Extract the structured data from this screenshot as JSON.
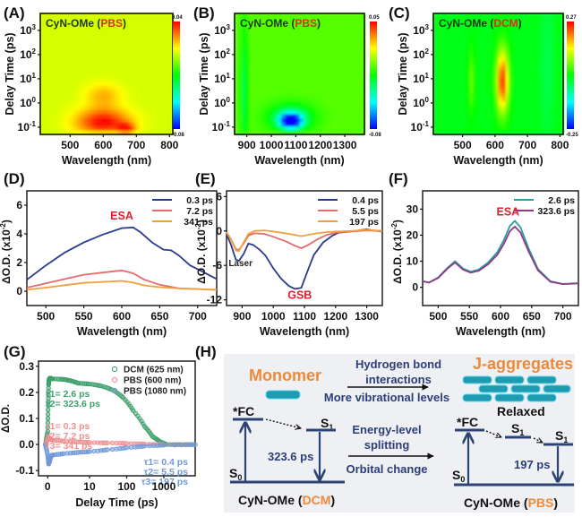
{
  "chart_data": [
    {
      "panel": "(A)",
      "type": "heatmap",
      "title_prefix": "CyN-OMe (",
      "title_solvent": "PBS",
      "title_suffix": ")",
      "xlabel": "Wavelength (nm)",
      "ylabel": "Delay Time (ps)",
      "xlim": [
        410,
        810
      ],
      "xticks": [
        "500",
        "600",
        "700",
        "800"
      ],
      "xtick_values": [
        500,
        600,
        700,
        800
      ],
      "ylim_log10": [
        -1.3,
        3.7
      ],
      "yticks": [
        "10-1",
        "100",
        "101",
        "102",
        "103"
      ],
      "ytick_exponents": [
        -1,
        0,
        1,
        2,
        3
      ],
      "colorbar": {
        "max": "0.04",
        "min": "-0.08",
        "vmin": -0.08,
        "vmax": 0.04
      },
      "background_value": 0.005,
      "features": [
        {
          "center_nm": 600,
          "center_log_t": -0.8,
          "width_nm": 80,
          "width_log_t": 0.55,
          "value": 0.035
        },
        {
          "center_nm": 670,
          "center_log_t": -1.1,
          "width_nm": 25,
          "width_log_t": 0.25,
          "value": 0.03
        },
        {
          "center_nm": 600,
          "center_log_t": 0.3,
          "width_nm": 55,
          "width_log_t": 0.5,
          "value": 0.014
        }
      ]
    },
    {
      "panel": "(B)",
      "type": "heatmap",
      "title_prefix": "CyN-OMe (",
      "title_solvent": "PBS",
      "title_suffix": ")",
      "xlabel": "Wavelength (nm)",
      "ylabel": "Delay Time (ps)",
      "xlim": [
        850,
        1380
      ],
      "xticks": [
        "900",
        "1000",
        "1100",
        "1200",
        "1300"
      ],
      "xtick_values": [
        900,
        1000,
        1100,
        1200,
        1300
      ],
      "ylim_log10": [
        -1.3,
        3.7
      ],
      "yticks": [
        "10-1",
        "100",
        "101",
        "102",
        "103"
      ],
      "ytick_exponents": [
        -1,
        0,
        1,
        2,
        3
      ],
      "colorbar": {
        "max": "0.05",
        "min": "-0.08",
        "vmin": -0.08,
        "vmax": 0.05
      },
      "background_value": -0.004,
      "features": [
        {
          "center_nm": 1080,
          "center_log_t": -0.75,
          "width_nm": 45,
          "width_log_t": 0.3,
          "value": -0.075
        },
        {
          "center_nm": 1080,
          "center_log_t": -0.6,
          "width_nm": 90,
          "width_log_t": 0.55,
          "value": -0.03
        },
        {
          "center_nm": 890,
          "center_log_t": 0.5,
          "width_nm": 15,
          "width_log_t": 3.0,
          "value": -0.02
        }
      ]
    },
    {
      "panel": "(C)",
      "type": "heatmap",
      "title_prefix": "CyN-OMe (",
      "title_solvent": "DCM",
      "title_suffix": ")",
      "xlabel": "Wavelength (nm)",
      "ylabel": "Delay Time (ps)",
      "xlim": [
        410,
        810
      ],
      "xticks": [
        "500",
        "600",
        "700",
        "800"
      ],
      "xtick_values": [
        500,
        600,
        700,
        800
      ],
      "ylim_log10": [
        -1.3,
        3.7
      ],
      "yticks": [
        "10-1",
        "100",
        "101",
        "102",
        "103"
      ],
      "ytick_exponents": [
        -1,
        0,
        1,
        2,
        3
      ],
      "colorbar": {
        "max": "0.27",
        "min": "-0.25",
        "vmin": -0.25,
        "vmax": 0.27
      },
      "background_value": 0.0,
      "features": [
        {
          "center_nm": 623,
          "center_log_t": 0.9,
          "width_nm": 18,
          "width_log_t": 1.3,
          "value": 0.25
        },
        {
          "center_nm": 528,
          "center_log_t": 0.9,
          "width_nm": 10,
          "width_log_t": 1.3,
          "value": 0.06
        },
        {
          "center_nm": 760,
          "center_log_t": 1.5,
          "width_nm": 20,
          "width_log_t": 3.0,
          "value": -0.03
        }
      ]
    },
    {
      "panel": "(D)",
      "type": "line",
      "xlabel": "Wavelength (nm)",
      "ylabel_main": "ΔO.D. (x10",
      "ylabel_sup": "-2",
      "ylabel_end": ")",
      "xlim": [
        475,
        725
      ],
      "ylim": [
        -1,
        7
      ],
      "xticks": [
        500,
        550,
        600,
        650,
        700
      ],
      "yticks": [
        0,
        2,
        4,
        6
      ],
      "annotations": [
        {
          "text": "ESA",
          "x": 600,
          "y": 5.0,
          "color": "#e0202e"
        }
      ],
      "series": [
        {
          "name": "0.3 ps",
          "color": "#2b3a8c",
          "x": [
            475,
            500,
            525,
            550,
            575,
            600,
            615,
            625,
            640,
            655,
            665,
            675,
            690,
            705,
            725
          ],
          "y": [
            0.8,
            1.8,
            2.7,
            3.4,
            3.95,
            4.4,
            4.45,
            4.1,
            3.4,
            2.9,
            2.85,
            2.5,
            1.8,
            1.4,
            0.85
          ]
        },
        {
          "name": "7.2 ps",
          "color": "#e36b6b",
          "x": [
            475,
            500,
            525,
            550,
            575,
            600,
            615,
            630,
            650,
            675,
            700,
            725
          ],
          "y": [
            0.25,
            0.55,
            0.85,
            1.15,
            1.3,
            1.45,
            1.25,
            0.8,
            0.45,
            0.2,
            0.15,
            0.1
          ]
        },
        {
          "name": "341 ps",
          "color": "#f0a03a",
          "x": [
            475,
            500,
            525,
            550,
            575,
            600,
            615,
            630,
            650,
            675,
            700,
            725
          ],
          "y": [
            0.1,
            0.25,
            0.42,
            0.58,
            0.65,
            0.72,
            0.6,
            0.4,
            0.28,
            0.2,
            0.15,
            0.08
          ]
        }
      ]
    },
    {
      "panel": "(E)",
      "type": "line",
      "xlabel": "Wavelength (nm)",
      "ylabel_main": "ΔO.D. (x10",
      "ylabel_sup": "-2",
      "ylabel_end": ")",
      "xlim": [
        850,
        1350
      ],
      "ylim": [
        -13,
        7
      ],
      "xticks": [
        900,
        1000,
        1100,
        1200,
        1300
      ],
      "yticks": [
        -12,
        -6,
        0,
        6
      ],
      "annotations": [
        {
          "text": "Laser",
          "x": 895,
          "y": -6.1,
          "color": "#222222"
        },
        {
          "text": "GSB",
          "x": 1085,
          "y": -11.8,
          "color": "#e0202e"
        }
      ],
      "series": [
        {
          "name": "0.4 ps",
          "color": "#2b3a8c",
          "x": [
            850,
            865,
            880,
            890,
            905,
            920,
            935,
            955,
            975,
            1000,
            1025,
            1050,
            1070,
            1090,
            1110,
            1130,
            1160,
            1190,
            1210,
            1250,
            1300,
            1320,
            1350
          ],
          "y": [
            -0.5,
            -2.5,
            -5.0,
            -5.2,
            -4.0,
            -2.2,
            -2.4,
            -3.2,
            -4.3,
            -6.5,
            -8.3,
            -9.6,
            -10.1,
            -9.9,
            -7.0,
            -4.2,
            -2.0,
            -0.8,
            -0.3,
            -0.1,
            0.3,
            0.1,
            -0.1
          ]
        },
        {
          "name": "5.5 ps",
          "color": "#e36b6b",
          "x": [
            850,
            865,
            880,
            890,
            905,
            920,
            940,
            970,
            1000,
            1040,
            1070,
            1090,
            1110,
            1140,
            1170,
            1200,
            1250,
            1300,
            1350
          ],
          "y": [
            -0.2,
            -1.5,
            -3.2,
            -3.3,
            -2.2,
            -0.8,
            -0.4,
            -0.5,
            -1.0,
            -1.8,
            -2.6,
            -3.0,
            -2.5,
            -1.5,
            -0.7,
            -0.3,
            -0.1,
            0.1,
            0.0
          ]
        },
        {
          "name": "197 ps",
          "color": "#f0a03a",
          "x": [
            850,
            865,
            880,
            890,
            905,
            920,
            940,
            970,
            1000,
            1040,
            1070,
            1090,
            1110,
            1140,
            1170,
            1200,
            1250,
            1300,
            1350
          ],
          "y": [
            -0.2,
            -1.6,
            -3.4,
            -3.5,
            -2.0,
            -0.5,
            0.0,
            0.1,
            -0.1,
            -0.4,
            -0.7,
            -0.9,
            -0.7,
            -0.4,
            -0.2,
            -0.1,
            0.0,
            0.2,
            0.0
          ]
        }
      ]
    },
    {
      "panel": "(F)",
      "type": "line",
      "xlabel": "Wavelength (nm)",
      "ylabel_main": "ΔO.D. (x10",
      "ylabel_sup": "-2",
      "ylabel_end": ")",
      "xlim": [
        475,
        725
      ],
      "ylim": [
        -7,
        37
      ],
      "xticks": [
        500,
        550,
        600,
        650,
        700
      ],
      "yticks": [
        0,
        10,
        20,
        30
      ],
      "annotations": [
        {
          "text": "ESA",
          "x": 612,
          "y": 27.5,
          "color": "#e0202e"
        }
      ],
      "series": [
        {
          "name": "2.6 ps",
          "color": "#2a9d9a",
          "x": [
            475,
            485,
            500,
            515,
            527,
            540,
            552,
            565,
            580,
            595,
            605,
            615,
            623,
            632,
            645,
            660,
            680,
            700,
            725
          ],
          "y": [
            2.3,
            1.8,
            3.8,
            7.5,
            10.0,
            7.2,
            6.0,
            6.8,
            9.5,
            13.5,
            18.0,
            23.5,
            25.5,
            23.0,
            15.0,
            7.0,
            2.3,
            1.3,
            1.6
          ]
        },
        {
          "name": "323.6 ps",
          "color": "#8e3a86",
          "x": [
            475,
            485,
            500,
            515,
            527,
            540,
            552,
            565,
            580,
            595,
            605,
            615,
            623,
            632,
            645,
            660,
            680,
            700,
            725
          ],
          "y": [
            2.3,
            1.8,
            3.6,
            7.2,
            9.5,
            6.8,
            5.6,
            6.3,
            8.8,
            12.5,
            16.5,
            21.5,
            23.3,
            21.0,
            13.8,
            6.5,
            2.1,
            1.2,
            1.5
          ]
        }
      ]
    },
    {
      "panel": "(G)",
      "type": "scatter",
      "xlabel": "Delay Time (ps)",
      "ylabel": "ΔO.D.",
      "x_scale": "linear below 1 ps, log above",
      "xlim": [
        -1,
        7000
      ],
      "ylim": [
        -0.12,
        0.32
      ],
      "xticks": [
        "0",
        "10",
        "100",
        "1000"
      ],
      "xtick_values": [
        0,
        10,
        100,
        1000
      ],
      "yticks": [
        "-0.1",
        "0.0",
        "0.1",
        "0.2",
        "0.3"
      ],
      "ytick_values": [
        -0.1,
        0.0,
        0.1,
        0.2,
        0.3
      ],
      "series": [
        {
          "name": "DCM (625 nm)",
          "color": "#3d9f6a",
          "x": [
            -0.5,
            0,
            0.1,
            0.2,
            0.3,
            0.5,
            1,
            2,
            3,
            5,
            10,
            20,
            40,
            80,
            150,
            300,
            500,
            800,
            1200,
            3000,
            7000
          ],
          "y": [
            0.0,
            0.05,
            0.15,
            0.23,
            0.25,
            0.255,
            0.252,
            0.25,
            0.245,
            0.235,
            0.232,
            0.225,
            0.21,
            0.18,
            0.13,
            0.07,
            0.03,
            0.01,
            0.0,
            0.0,
            0.0
          ],
          "fit_taus": [
            "τ1= 2.6 ps",
            "τ2= 323.6 ps"
          ]
        },
        {
          "name": "PBS (600 nm)",
          "color": "#ef8f8f",
          "x": [
            -0.5,
            0,
            0.2,
            0.5,
            1,
            2,
            5,
            10,
            30,
            100,
            300,
            1000,
            7000
          ],
          "y": [
            0.0,
            0.02,
            0.028,
            0.022,
            0.017,
            0.013,
            0.01,
            0.008,
            0.006,
            0.004,
            0.002,
            0.0,
            0.0
          ],
          "fit_taus": [
            "τ1= 0.3 ps",
            "τ2= 7.2 ps",
            "τ3= 341 ps"
          ]
        },
        {
          "name": "PBS (1080 nm)",
          "color": "#6f98d9",
          "x": [
            -0.5,
            0,
            0.2,
            0.4,
            0.7,
            1,
            2,
            5,
            10,
            30,
            100,
            300,
            1000,
            7000
          ],
          "y": [
            0.0,
            -0.04,
            -0.075,
            -0.065,
            -0.045,
            -0.04,
            -0.035,
            -0.03,
            -0.027,
            -0.02,
            -0.012,
            -0.006,
            -0.002,
            0.0
          ],
          "fit_taus": [
            "τ1= 0.4 ps",
            "τ2= 5.5 ps",
            "τ3= 197 ps"
          ]
        }
      ]
    }
  ],
  "panel_labels": [
    "(A)",
    "(B)",
    "(C)",
    "(D)",
    "(E)",
    "(F)",
    "(G)",
    "(H)"
  ],
  "diagram_h": {
    "left_title": "Monomer",
    "right_title": "J-aggregates",
    "arrow1_above": [
      "Hydrogen bond",
      "interactions"
    ],
    "arrow1_below": "More vibrational levels",
    "arrow2_above": [
      "Energy-level",
      "splitting"
    ],
    "arrow2_below": "Orbital change",
    "left_fc": "*FC",
    "left_s1": "S",
    "left_s1_sub": "1",
    "left_s0": "S",
    "left_s0_sub": "0",
    "left_lifetime": "323.6 ps",
    "right_fc": "*FC",
    "right_relaxed": "Relaxed",
    "right_s1a": "S",
    "right_s1a_sub": "1",
    "right_s1b": "S",
    "right_s1b_sub": "1",
    "right_s0": "S",
    "right_s0_sub": "0",
    "right_lifetime": "197 ps",
    "left_caption_prefix": "CyN-OMe (",
    "left_caption_solvent": "DCM",
    "left_caption_suffix": ")",
    "right_caption_prefix": "CyN-OMe (",
    "right_caption_solvent": "PBS",
    "right_caption_suffix": ")"
  },
  "colors": {
    "accent_orange": "#ec8a3a",
    "esa_red": "#e0202e",
    "level_navy": "#2d4373",
    "text_navy": "#2c3e78",
    "molecule_teal": "#1e9bb0",
    "diagram_bg": "#eef0f3"
  }
}
